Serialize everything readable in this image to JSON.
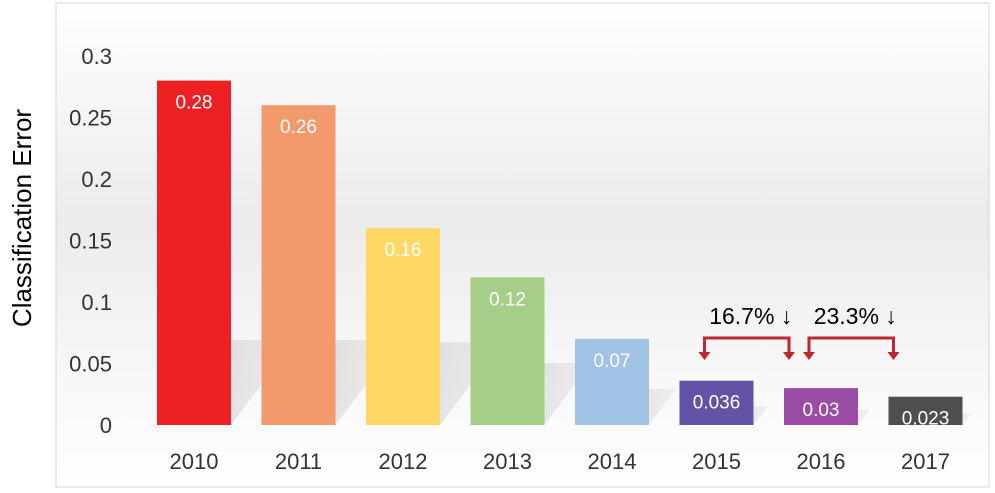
{
  "chart_data": {
    "type": "bar",
    "ylabel": "Classification Error",
    "xlabel": "",
    "ylim": [
      0,
      0.3
    ],
    "yticks": [
      "0",
      "0.05",
      "0.1",
      "0.15",
      "0.2",
      "0.25",
      "0.3"
    ],
    "categories": [
      "2010",
      "2011",
      "2012",
      "2013",
      "2014",
      "2015",
      "2016",
      "2017"
    ],
    "values": [
      0.28,
      0.26,
      0.16,
      0.12,
      0.07,
      0.036,
      0.03,
      0.023
    ],
    "data_labels": [
      "0.28",
      "0.26",
      "0.16",
      "0.12",
      "0.07",
      "0.036",
      "0.03",
      "0.023"
    ],
    "colors": [
      "#ed2124",
      "#f39a6c",
      "#fdd865",
      "#a5cf88",
      "#a0c3e6",
      "#6352a6",
      "#9a4ba4",
      "#4e4e4e"
    ],
    "annotations": [
      {
        "text": "16.7%",
        "arrow": "↓",
        "from": "2015",
        "to": "2016"
      },
      {
        "text": "23.3%",
        "arrow": "↓",
        "from": "2016",
        "to": "2017"
      }
    ],
    "annotation_color": "#c0272d",
    "grid": false,
    "legend": "none"
  }
}
